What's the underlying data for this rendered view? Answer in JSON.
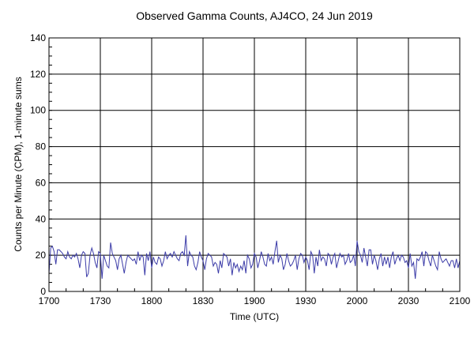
{
  "chart_data": {
    "type": "line",
    "title": "Observed Gamma Counts, AJ4CO, 24 Jun 2019",
    "xlabel": "Time (UTC)",
    "ylabel": "Counts per Minute (CPM), 1-minute sums",
    "x_ticks": [
      "1700",
      "1730",
      "1800",
      "1830",
      "1900",
      "1930",
      "2000",
      "2030",
      "2100"
    ],
    "y_ticks": [
      0,
      20,
      40,
      60,
      80,
      100,
      120,
      140
    ],
    "xlim_minutes": [
      0,
      240
    ],
    "ylim": [
      0,
      140
    ],
    "grid": true,
    "line_color": "#3c3ca8",
    "series": [
      {
        "name": "CPM",
        "interval_minutes": 1,
        "values": [
          10,
          24,
          25,
          22,
          15,
          23,
          23,
          22,
          21,
          19,
          18,
          22,
          19,
          18,
          20,
          19,
          21,
          18,
          13,
          20,
          22,
          21,
          8,
          10,
          20,
          24,
          21,
          16,
          13,
          22,
          21,
          7,
          20,
          17,
          14,
          13,
          27,
          21,
          19,
          17,
          12,
          18,
          20,
          15,
          10,
          16,
          20,
          19,
          18,
          17,
          18,
          15,
          22,
          17,
          20,
          19,
          9,
          21,
          17,
          22,
          13,
          19,
          16,
          15,
          19,
          18,
          14,
          17,
          22,
          18,
          20,
          21,
          19,
          22,
          20,
          18,
          17,
          21,
          22,
          20,
          31,
          14,
          22,
          20,
          19,
          14,
          12,
          16,
          22,
          19,
          17,
          12,
          18,
          21,
          20,
          19,
          14,
          16,
          15,
          10,
          17,
          13,
          21,
          20,
          19,
          14,
          18,
          9,
          16,
          13,
          15,
          11,
          14,
          12,
          17,
          10,
          20,
          18,
          13,
          15,
          21,
          19,
          13,
          17,
          22,
          19,
          15,
          14,
          21,
          17,
          19,
          15,
          22,
          28,
          16,
          20,
          18,
          12,
          15,
          21,
          17,
          14,
          15,
          17,
          20,
          12,
          18,
          21,
          20,
          16,
          19,
          17,
          12,
          22,
          20,
          10,
          19,
          14,
          23,
          17,
          19,
          18,
          14,
          21,
          20,
          15,
          19,
          21,
          13,
          17,
          21,
          19,
          20,
          15,
          17,
          21,
          16,
          17,
          20,
          14,
          28,
          22,
          20,
          16,
          24,
          19,
          14,
          23,
          23,
          15,
          20,
          17,
          12,
          18,
          21,
          14,
          19,
          15,
          19,
          13,
          19,
          22,
          15,
          18,
          20,
          17,
          20,
          19,
          16,
          17,
          13,
          21,
          14,
          16,
          7,
          18,
          17,
          19,
          22,
          14,
          22,
          21,
          17,
          14,
          20,
          17,
          14,
          12,
          22,
          18,
          16,
          17,
          18,
          16,
          14,
          17,
          17,
          13,
          18,
          13,
          17
        ]
      }
    ]
  }
}
